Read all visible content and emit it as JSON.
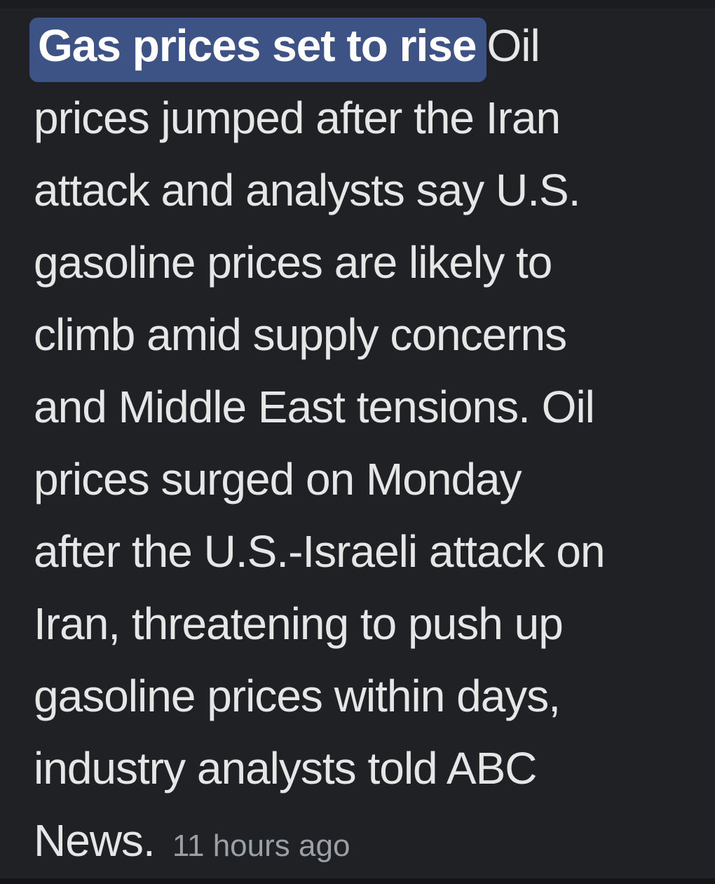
{
  "theme": {
    "background": "#202124",
    "body_text_color": "#e6e6e6",
    "title_text_color": "#ffffff",
    "title_highlight_color": "#3d5385",
    "timestamp_color": "#9aa0a6"
  },
  "article": {
    "highlighted_title": "Gas prices set to rise",
    "snippet_lines": [
      "Oil",
      "prices jumped after the Iran",
      "attack and analysts say U.S.",
      "gasoline prices are likely to",
      "climb amid supply concerns",
      "and Middle East tensions. Oil",
      "prices surged on Monday",
      "after the U.S.-Israeli attack on",
      "Iran, threatening to push up",
      "gasoline prices within days,",
      "industry analysts told ABC",
      "News."
    ],
    "timestamp": "11 hours ago"
  }
}
